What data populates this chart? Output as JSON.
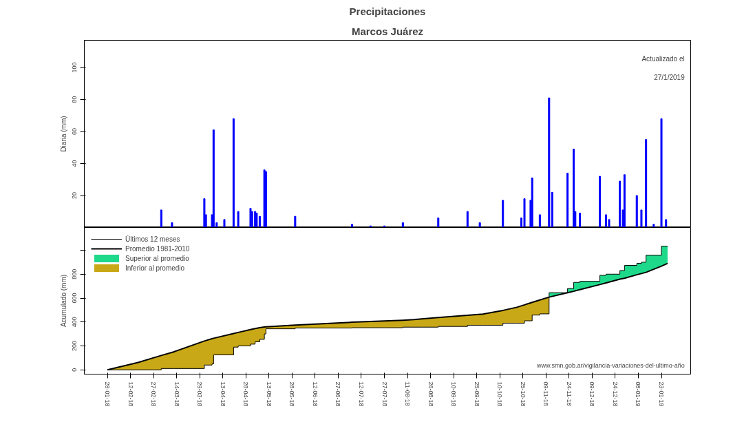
{
  "chart_data": [
    {
      "type": "bar",
      "title": "Precipitaciones",
      "subtitle": "Marcos Juárez",
      "ylabel": "Diaria (mm)",
      "annotations": [
        "Actualizado el",
        "27/1/2019"
      ],
      "tick_labels": "y",
      "xlim": [
        "2018-01-13",
        "2019-02-11"
      ],
      "ylim": [
        0,
        117
      ],
      "yticks": [
        20,
        40,
        60,
        80,
        100
      ],
      "x": [
        "2018-03-04",
        "2018-03-11",
        "2018-04-01",
        "2018-04-02",
        "2018-04-06",
        "2018-04-07",
        "2018-04-09",
        "2018-04-14",
        "2018-04-20",
        "2018-04-23",
        "2018-05-01",
        "2018-05-02",
        "2018-05-04",
        "2018-05-05",
        "2018-05-07",
        "2018-05-10",
        "2018-05-11",
        "2018-05-30",
        "2018-07-06",
        "2018-07-18",
        "2018-07-27",
        "2018-08-08",
        "2018-08-31",
        "2018-09-19",
        "2018-09-27",
        "2018-10-12",
        "2018-10-24",
        "2018-10-26",
        "2018-10-30",
        "2018-10-31",
        "2018-11-05",
        "2018-11-11",
        "2018-11-13",
        "2018-11-23",
        "2018-11-27",
        "2018-11-28",
        "2018-12-01",
        "2018-12-14",
        "2018-12-18",
        "2018-12-20",
        "2018-12-27",
        "2018-12-29",
        "2018-12-30",
        "2019-01-07",
        "2019-01-10",
        "2019-01-13",
        "2019-01-18",
        "2019-01-23",
        "2019-01-26"
      ],
      "values": [
        11,
        3,
        18,
        8,
        8,
        61,
        3,
        5,
        68,
        10,
        12,
        10,
        10,
        9,
        7,
        36,
        35,
        7,
        2,
        1,
        1,
        3,
        6,
        10,
        3,
        17,
        6,
        18,
        17,
        31,
        8,
        81,
        22,
        34,
        49,
        10,
        9,
        32,
        8,
        5,
        29,
        11,
        33,
        20,
        11,
        55,
        2,
        68,
        5
      ],
      "color": "#0000ff"
    },
    {
      "type": "line",
      "ylabel": "Acumulado (mm)",
      "annotations": [
        "www.smn.gob.ar/vigilancia-variaciones-del-ultimo-año"
      ],
      "legend": "top left",
      "xlim": [
        "2018-01-13",
        "2019-02-11"
      ],
      "ylim": [
        -36,
        1190
      ],
      "yticks": [
        0,
        200,
        400,
        600,
        800,
        {
          "value": 1000,
          "label": null
        }
      ],
      "xticks": [
        {
          "value": "2018-01-28",
          "label": "28-01-18"
        },
        {
          "value": "2018-02-12",
          "label": "12-02-18"
        },
        {
          "value": "2018-02-27",
          "label": "27-02-18"
        },
        {
          "value": "2018-03-14",
          "label": "14-03-18"
        },
        {
          "value": "2018-03-29",
          "label": "29-03-18"
        },
        {
          "value": "2018-04-13",
          "label": "13-04-18"
        },
        {
          "value": "2018-04-28",
          "label": "28-04-18"
        },
        {
          "value": "2018-05-13",
          "label": "13-05-18"
        },
        {
          "value": "2018-05-28",
          "label": "28-05-18"
        },
        {
          "value": "2018-06-12",
          "label": "12-06-18"
        },
        {
          "value": "2018-06-27",
          "label": "27-06-18"
        },
        {
          "value": "2018-07-12",
          "label": "12-07-18"
        },
        {
          "value": "2018-07-27",
          "label": "27-07-18"
        },
        {
          "value": "2018-08-11",
          "label": "11-08-18"
        },
        {
          "value": "2018-08-26",
          "label": "26-08-18"
        },
        {
          "value": "2018-09-10",
          "label": "10-09-18"
        },
        {
          "value": "2018-09-25",
          "label": "25-09-18"
        },
        {
          "value": "2018-10-10",
          "label": "10-10-18"
        },
        {
          "value": "2018-10-25",
          "label": "25-10-18"
        },
        {
          "value": "2018-11-09",
          "label": "09-11-18"
        },
        {
          "value": "2018-11-24",
          "label": "24-11-18"
        },
        {
          "value": "2018-12-09",
          "label": "09-12-18"
        },
        {
          "value": "2018-12-24",
          "label": "24-12-18"
        },
        {
          "value": "2019-01-08",
          "label": "08-01-19"
        },
        {
          "value": "2019-01-23",
          "label": "23-01-19"
        }
      ],
      "x": [
        "2018-01-28",
        "2018-02-17",
        "2018-03-04",
        "2018-03-04",
        "2018-03-12",
        "2018-04-01",
        "2018-04-01",
        "2018-04-06",
        "2018-04-06",
        "2018-04-07",
        "2018-04-07",
        "2018-04-20",
        "2018-04-20",
        "2018-04-23",
        "2018-04-23",
        "2018-05-01",
        "2018-05-01",
        "2018-05-04",
        "2018-05-04",
        "2018-05-07",
        "2018-05-07",
        "2018-05-10",
        "2018-05-10",
        "2018-05-11",
        "2018-05-11",
        "2018-05-30",
        "2018-05-30",
        "2018-06-17",
        "2018-07-06",
        "2018-07-06",
        "2018-07-27",
        "2018-08-08",
        "2018-08-08",
        "2018-08-15",
        "2018-08-31",
        "2018-08-31",
        "2018-09-19",
        "2018-09-19",
        "2018-09-29",
        "2018-10-12",
        "2018-10-12",
        "2018-10-21",
        "2018-10-26",
        "2018-10-26",
        "2018-10-31",
        "2018-10-31",
        "2018-11-05",
        "2018-11-05",
        "2018-11-11",
        "2018-11-11",
        "2018-11-23",
        "2018-11-23",
        "2018-11-27",
        "2018-11-27",
        "2018-12-01",
        "2018-12-01",
        "2018-12-14",
        "2018-12-14",
        "2018-12-18",
        "2018-12-18",
        "2018-12-27",
        "2018-12-27",
        "2018-12-30",
        "2018-12-30",
        "2019-01-07",
        "2019-01-07",
        "2019-01-10",
        "2019-01-10",
        "2019-01-13",
        "2019-01-13",
        "2019-01-23",
        "2019-01-23",
        "2019-01-27"
      ],
      "series": [
        {
          "name": "Últimos 12 meses",
          "type": "line",
          "color": "#000000",
          "values": [
            0,
            0,
            0,
            11,
            11,
            11,
            40,
            40,
            50,
            50,
            125,
            125,
            190,
            190,
            200,
            200,
            215,
            215,
            235,
            235,
            255,
            255,
            300,
            300,
            343,
            343,
            350,
            350,
            350,
            352,
            352,
            352,
            357,
            357,
            357,
            363,
            363,
            373,
            373,
            373,
            390,
            390,
            390,
            410,
            410,
            458,
            458,
            468,
            468,
            645,
            645,
            680,
            680,
            731,
            731,
            740,
            740,
            790,
            790,
            800,
            800,
            830,
            830,
            873,
            873,
            890,
            890,
            900,
            900,
            958,
            958,
            1034,
            1034
          ]
        },
        {
          "name": "Promedio 1981-2010",
          "type": "line",
          "color": "#000000",
          "values": [
            0,
            62,
            120,
            120,
            150,
            241,
            241,
            260,
            260,
            264,
            264,
            304,
            304,
            313,
            313,
            337,
            337,
            345,
            345,
            352,
            352,
            358,
            358,
            360,
            360,
            374,
            374,
            386,
            398,
            398,
            409,
            415,
            415,
            420,
            437,
            437,
            456,
            456,
            466,
            497,
            497,
            523,
            543,
            543,
            564,
            564,
            584,
            584,
            608,
            608,
            645,
            645,
            657,
            657,
            670,
            670,
            713,
            713,
            727,
            727,
            758,
            758,
            766,
            766,
            795,
            795,
            805,
            805,
            815,
            815,
            867,
            867,
            890
          ]
        },
        {
          "name": "Superior al promedio",
          "type": "area",
          "color": "#1ed98a",
          "values": [
            null,
            null,
            null,
            null,
            null,
            null,
            null,
            null,
            null,
            null,
            null,
            null,
            null,
            null,
            null,
            null,
            null,
            null,
            null,
            null,
            null,
            null,
            null,
            null,
            null,
            null,
            null,
            null,
            null,
            null,
            null,
            null,
            null,
            null,
            null,
            null,
            null,
            null,
            null,
            null,
            null,
            null,
            null,
            null,
            null,
            null,
            null,
            null,
            null,
            645,
            645,
            680,
            680,
            731,
            731,
            740,
            740,
            790,
            790,
            800,
            800,
            830,
            830,
            873,
            873,
            890,
            890,
            900,
            900,
            958,
            958,
            1034,
            1034
          ]
        },
        {
          "name": "Inferior al promedio",
          "type": "area",
          "color": "#c9a817",
          "values": [
            0,
            62,
            120,
            120,
            150,
            241,
            241,
            260,
            260,
            264,
            264,
            304,
            304,
            313,
            313,
            337,
            337,
            345,
            345,
            352,
            352,
            358,
            358,
            360,
            360,
            374,
            374,
            386,
            398,
            398,
            409,
            415,
            415,
            420,
            437,
            437,
            456,
            456,
            466,
            497,
            497,
            523,
            543,
            543,
            564,
            564,
            584,
            584,
            608,
            null,
            null,
            null,
            null,
            null,
            null,
            null,
            null,
            null,
            null,
            null,
            null,
            null,
            null,
            null,
            null,
            null,
            null,
            null,
            null,
            null,
            null,
            null,
            null
          ]
        }
      ]
    }
  ]
}
